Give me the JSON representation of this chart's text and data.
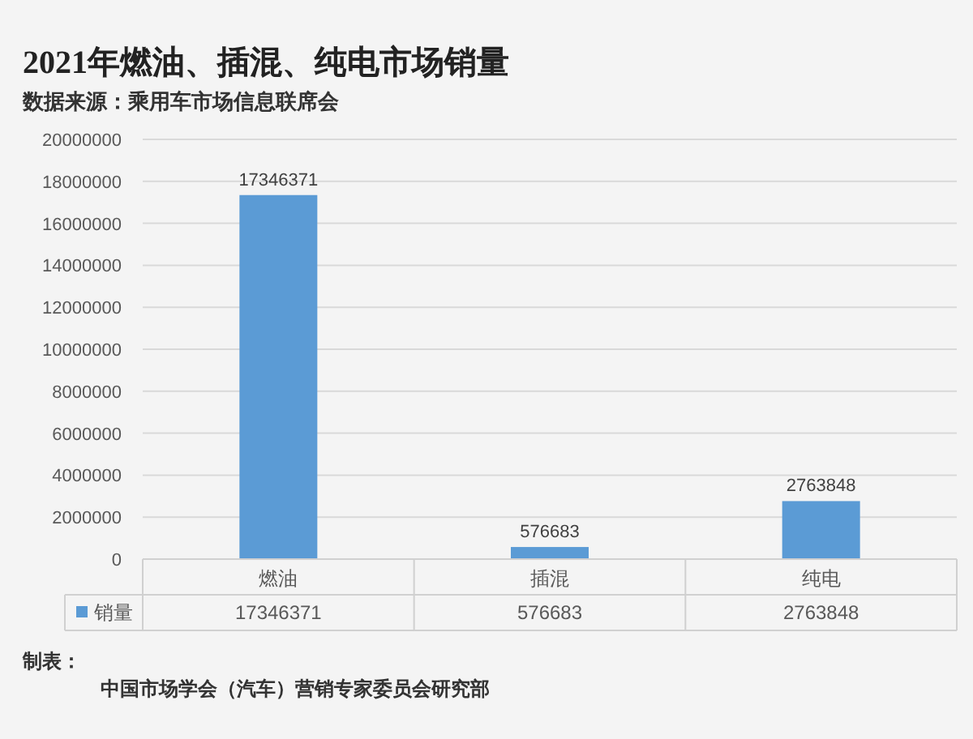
{
  "chart_data": {
    "type": "bar",
    "title": "2021年燃油、插混、纯电市场销量",
    "subtitle": "数据来源：乘用车市场信息联席会",
    "categories": [
      "燃油",
      "插混",
      "纯电"
    ],
    "series": [
      {
        "name": "销量",
        "color": "#5b9bd5",
        "values": [
          17346371,
          576683,
          2763848
        ]
      }
    ],
    "ylim": [
      0,
      20000000
    ],
    "yticks": [
      0,
      2000000,
      4000000,
      6000000,
      8000000,
      10000000,
      12000000,
      14000000,
      16000000,
      18000000,
      20000000
    ],
    "grid": "y",
    "legend": "bottom",
    "data_labels": true,
    "annotations": [
      {
        "text": "17346371",
        "x": "燃油",
        "y": 17346371
      },
      {
        "text": "576683",
        "x": "插混",
        "y": 576683
      },
      {
        "text": "2763848",
        "x": "纯电",
        "y": 2763848
      },
      "制表：",
      "中国市场学会（汽车）营销专家委员会研究部"
    ]
  }
}
